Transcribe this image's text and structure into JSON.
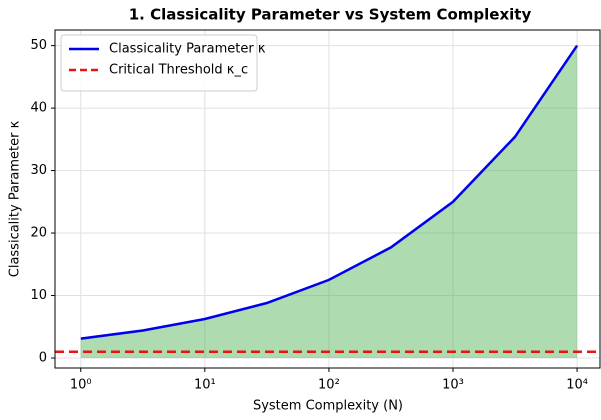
{
  "chart_data": {
    "type": "line",
    "title": "1. Classicality Parameter vs System Complexity",
    "xlabel": "System Complexity (N)",
    "ylabel": "Classicality Parameter κ",
    "x": [
      1,
      3.16,
      10,
      31.6,
      100,
      316,
      1000,
      3162,
      10000
    ],
    "series": [
      {
        "name": "Classicality Parameter κ",
        "color": "#0000ee",
        "fill": "#4caf50",
        "values": [
          3.1,
          4.4,
          6.25,
          8.8,
          12.5,
          17.7,
          25,
          35.4,
          50
        ]
      }
    ],
    "threshold": {
      "name": "Critical Threshold κ_c",
      "value": 1,
      "color": "#ee1111"
    },
    "xscale": "log",
    "xlim": [
      0.62,
      15300
    ],
    "ylim": [
      -1.6,
      52.5
    ],
    "xticks": [
      {
        "value": 1,
        "label": "10⁰"
      },
      {
        "value": 10,
        "label": "10¹"
      },
      {
        "value": 100,
        "label": "10²"
      },
      {
        "value": 1000,
        "label": "10³"
      },
      {
        "value": 10000,
        "label": "10⁴"
      }
    ],
    "yticks": [
      0,
      10,
      20,
      30,
      40,
      50
    ],
    "grid": true,
    "legend": "upper left"
  }
}
